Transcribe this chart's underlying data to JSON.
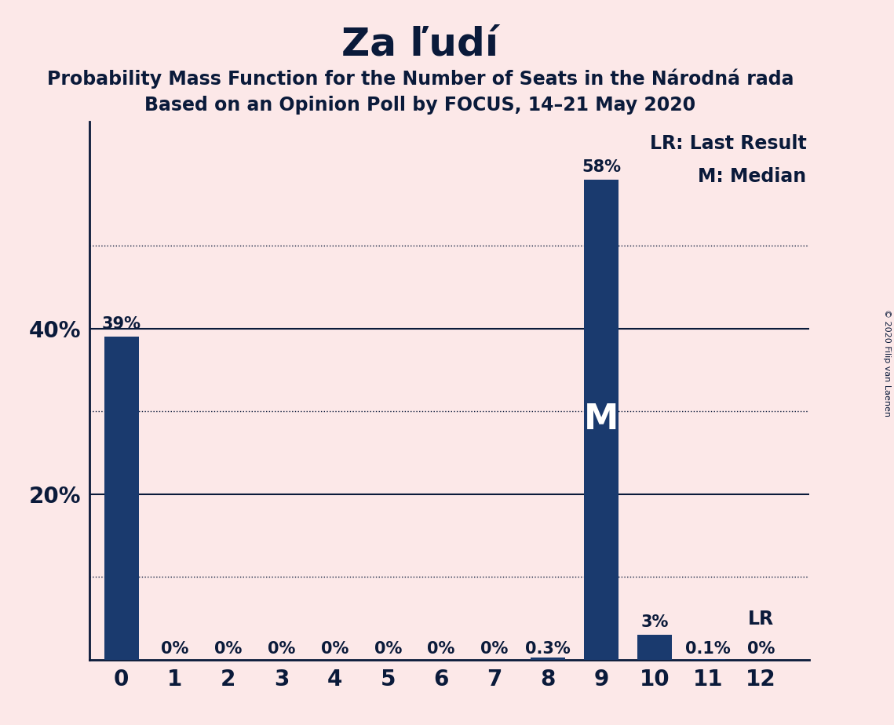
{
  "title": "Za ľudí",
  "subtitle_line1": "Probability Mass Function for the Number of Seats in the Národná rada",
  "subtitle_line2": "Based on an Opinion Poll by FOCUS, 14–21 May 2020",
  "copyright": "© 2020 Filip van Laenen",
  "categories": [
    0,
    1,
    2,
    3,
    4,
    5,
    6,
    7,
    8,
    9,
    10,
    11,
    12
  ],
  "values": [
    0.39,
    0.0,
    0.0,
    0.0,
    0.0,
    0.0,
    0.0,
    0.0,
    0.003,
    0.58,
    0.03,
    0.001,
    0.0
  ],
  "bar_labels": [
    "39%",
    "0%",
    "0%",
    "0%",
    "0%",
    "0%",
    "0%",
    "0%",
    "0.3%",
    "58%",
    "3%",
    "0.1%",
    "0%"
  ],
  "bar_color": "#1a3a6e",
  "background_color": "#fce8e8",
  "median_bar": 9,
  "median_label": "M",
  "lr_label": "LR",
  "yticks": [
    0.2,
    0.4
  ],
  "ytick_labels": [
    "20%",
    "40%"
  ],
  "ylim": [
    0,
    0.65
  ],
  "solid_gridlines": [
    0.2,
    0.4
  ],
  "dotted_gridlines": [
    0.1,
    0.3,
    0.5
  ],
  "legend_lr_text": "LR: Last Result",
  "legend_m_text": "M: Median",
  "title_fontsize": 36,
  "subtitle_fontsize": 17,
  "bar_label_fontsize": 15,
  "tick_fontsize": 20,
  "legend_fontsize": 17,
  "median_fontsize": 32
}
